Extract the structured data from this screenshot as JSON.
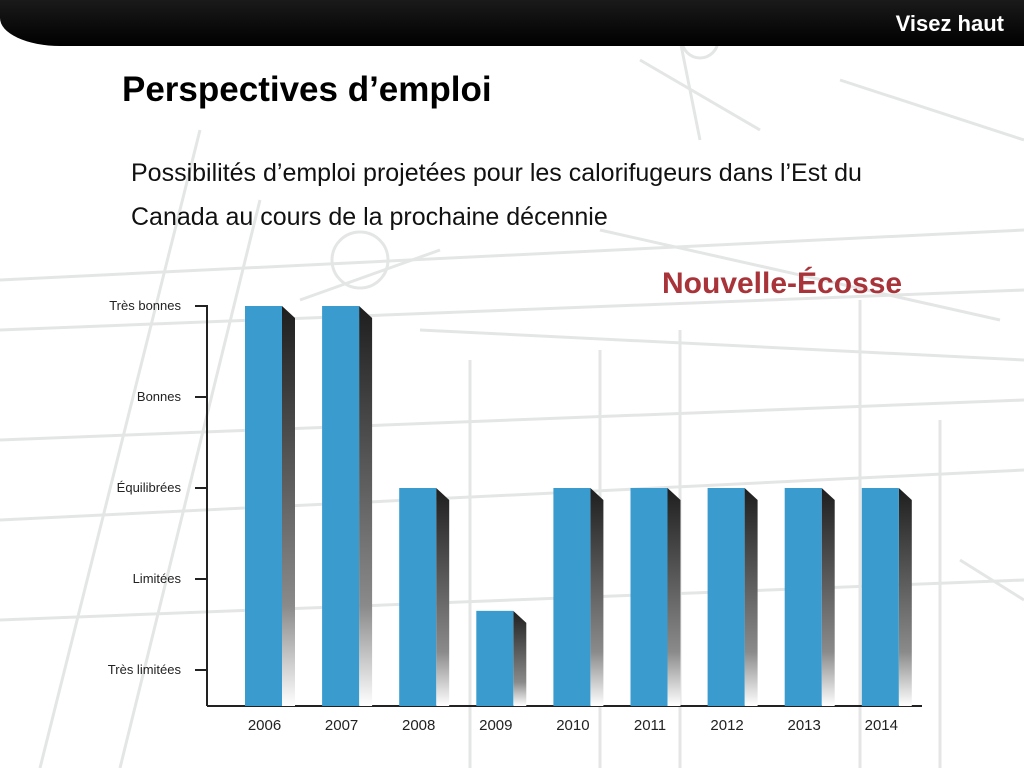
{
  "header": {
    "brand_label": "Visez haut"
  },
  "slide": {
    "title": "Perspectives d’emploi",
    "subtitle": "Possibilités d’emploi projetées pour les calorifugeurs dans l’Est du Canada au cours de la prochaine décennie",
    "region_label": "Nouvelle-Écosse"
  },
  "colors": {
    "bar": "#3a9bcf",
    "bar_side": "#2a2a2a",
    "region": "#a8343a",
    "topbar": "#000000"
  },
  "chart_data": {
    "type": "bar",
    "title": "Nouvelle-Écosse",
    "xlabel": "",
    "ylabel": "",
    "y_ticks": [
      "Très limitées",
      "Limitées",
      "Équilibrées",
      "Bonnes",
      "Très bonnes"
    ],
    "ylim": [
      1,
      5
    ],
    "categories": [
      "2006",
      "2007",
      "2008",
      "2009",
      "2010",
      "2011",
      "2012",
      "2013",
      "2014"
    ],
    "values": [
      5,
      5,
      3,
      1.65,
      3,
      3,
      3,
      3,
      3
    ],
    "grid": false
  }
}
